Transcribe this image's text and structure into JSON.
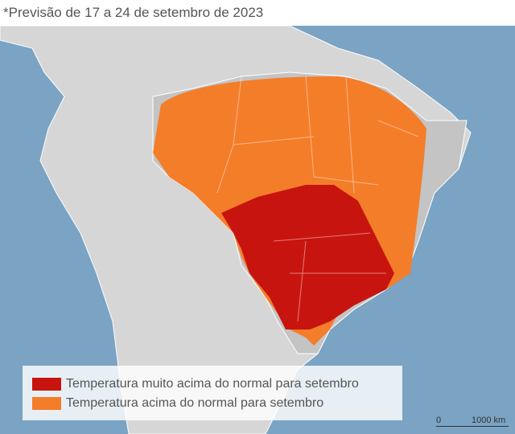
{
  "header": {
    "title": "*Previsão de 17 a 24 de setembro de 2023"
  },
  "legend": {
    "items": [
      {
        "label": "Temperatura muito acima do normal para setembro",
        "color": "#c8140f"
      },
      {
        "label": "Temperatura acima do normal para setembro",
        "color": "#f47d2a"
      }
    ]
  },
  "scale": {
    "start": "0",
    "end": "1000 km"
  }
}
